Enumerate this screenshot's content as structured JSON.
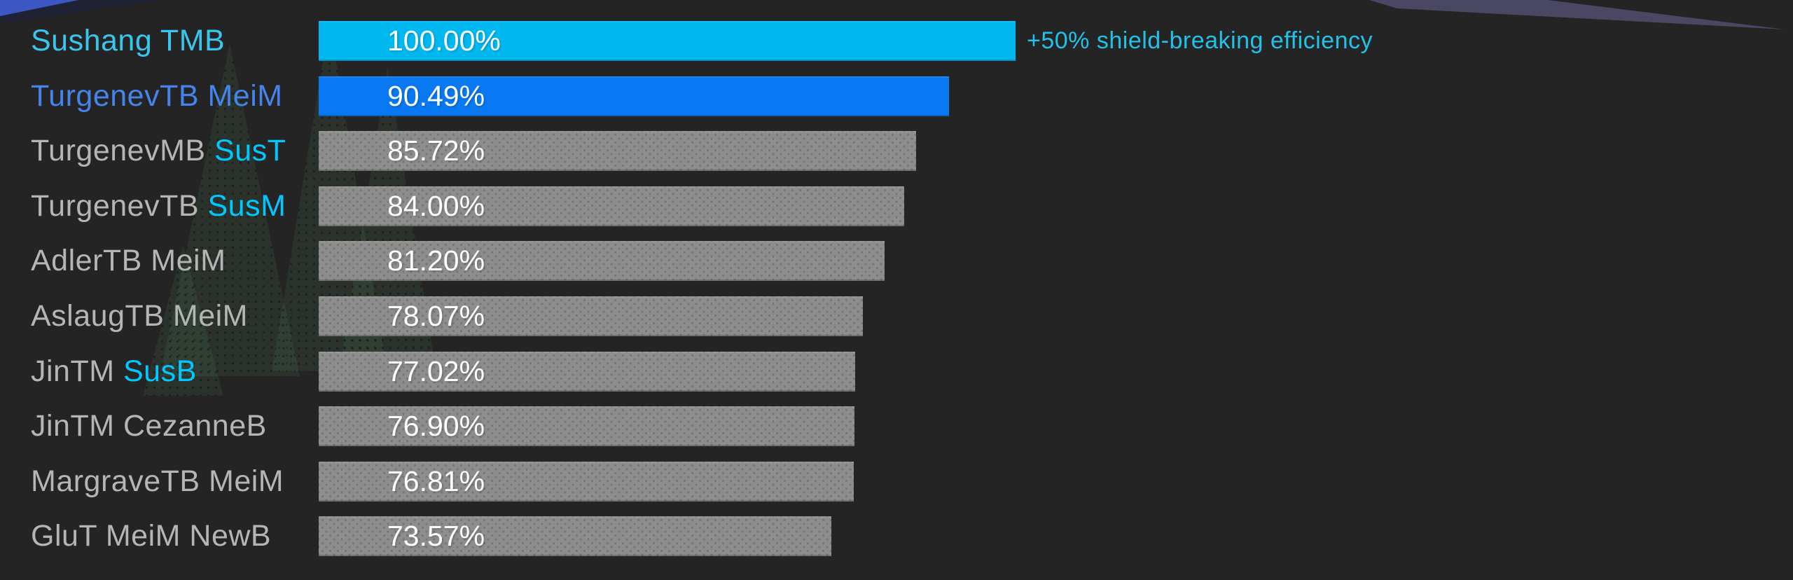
{
  "chart_data": {
    "type": "bar",
    "orientation": "horizontal",
    "categories": [
      "Sushang TMB",
      "TurgenevTB MeiM",
      "TurgenevMB SusT",
      "TurgenevTB SusM",
      "AdlerTB MeiM",
      "AslaugTB MeiM",
      "JinTM SusB",
      "JinTM CezanneB",
      "MargraveTB MeiM",
      "GluT MeiM NewB"
    ],
    "values": [
      100.0,
      90.49,
      85.72,
      84.0,
      81.2,
      78.07,
      77.02,
      76.9,
      76.81,
      73.57
    ],
    "value_labels": [
      "100.00%",
      "90.49%",
      "85.72%",
      "84.00%",
      "81.20%",
      "78.07%",
      "77.02%",
      "76.90%",
      "76.81%",
      "73.57%"
    ],
    "xlim": [
      0,
      100
    ],
    "grid": false,
    "legend": false,
    "annotation": "+50% shield-breaking efficiency",
    "annotation_target": "Sushang TMB"
  },
  "rows": [
    {
      "label_parts": [
        {
          "text": "Sushang TMB",
          "color": "cyan"
        }
      ],
      "value": 100.0,
      "value_label": "100.00%",
      "bar_color": "cyan"
    },
    {
      "label_parts": [
        {
          "text": "TurgenevTB MeiM",
          "color": "blue"
        }
      ],
      "value": 90.49,
      "value_label": "90.49%",
      "bar_color": "blue"
    },
    {
      "label_parts": [
        {
          "text": "TurgenevMB ",
          "color": "gray"
        },
        {
          "text": "SusT",
          "color": "accent"
        }
      ],
      "value": 85.72,
      "value_label": "85.72%",
      "bar_color": "gray"
    },
    {
      "label_parts": [
        {
          "text": "TurgenevTB ",
          "color": "gray"
        },
        {
          "text": "SusM",
          "color": "accent"
        }
      ],
      "value": 84.0,
      "value_label": "84.00%",
      "bar_color": "gray"
    },
    {
      "label_parts": [
        {
          "text": "AdlerTB MeiM",
          "color": "gray"
        }
      ],
      "value": 81.2,
      "value_label": "81.20%",
      "bar_color": "gray"
    },
    {
      "label_parts": [
        {
          "text": "AslaugTB MeiM",
          "color": "gray"
        }
      ],
      "value": 78.07,
      "value_label": "78.07%",
      "bar_color": "gray"
    },
    {
      "label_parts": [
        {
          "text": "JinTM ",
          "color": "gray"
        },
        {
          "text": "SusB",
          "color": "accent"
        }
      ],
      "value": 77.02,
      "value_label": "77.02%",
      "bar_color": "gray"
    },
    {
      "label_parts": [
        {
          "text": "JinTM CezanneB",
          "color": "gray"
        }
      ],
      "value": 76.9,
      "value_label": "76.90%",
      "bar_color": "gray"
    },
    {
      "label_parts": [
        {
          "text": "MargraveTB MeiM",
          "color": "gray"
        }
      ],
      "value": 76.81,
      "value_label": "76.81%",
      "bar_color": "gray"
    },
    {
      "label_parts": [
        {
          "text": "GluT MeiM NewB",
          "color": "gray"
        }
      ],
      "value": 73.57,
      "value_label": "73.57%",
      "bar_color": "gray"
    }
  ],
  "colors": {
    "background": "#242424",
    "annotation": "#21c2e8",
    "value_text": "#ffffff",
    "bar": {
      "cyan": "#00b8f0",
      "blue": "#0879f2",
      "gray": "#8d8d8d"
    },
    "label": {
      "cyan": "#38c6ec",
      "blue": "#4484ec",
      "accent": "#00c8ff",
      "gray": "#b5b5b5"
    },
    "wedge_top_left": "#3a57c4",
    "wedge_top_right": "#4a4763"
  }
}
